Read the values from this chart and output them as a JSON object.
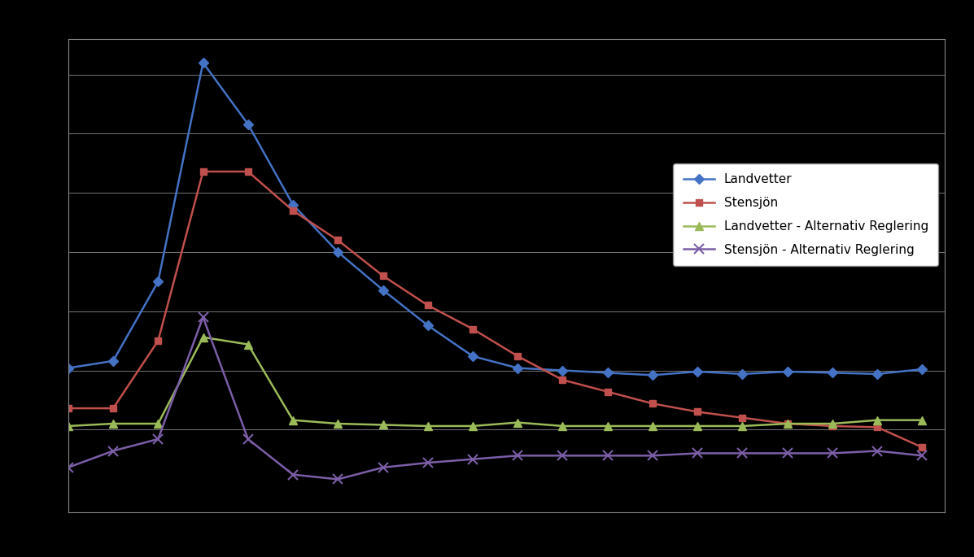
{
  "background_color": "#000000",
  "plot_bg_color": "#000000",
  "grid_color": "#888888",
  "text_color": "#000000",
  "spine_color": "#888888",
  "series": [
    {
      "label": "Landvetter",
      "color": "#4472C4",
      "marker": "D",
      "marker_size": 6,
      "linewidth": 1.8,
      "values": [
        52,
        58,
        125,
        310,
        258,
        190,
        150,
        118,
        88,
        62,
        52,
        50,
        48,
        46,
        49,
        47,
        49,
        48,
        47,
        51
      ]
    },
    {
      "label": "Stensjön",
      "color": "#C0504D",
      "marker": "s",
      "marker_size": 6,
      "linewidth": 1.8,
      "values": [
        18,
        18,
        75,
        218,
        218,
        185,
        160,
        130,
        105,
        85,
        62,
        42,
        32,
        22,
        15,
        10,
        5,
        3,
        2,
        -15
      ]
    },
    {
      "label": "Landvetter - Alternativ Reglering",
      "color": "#9BBB59",
      "marker": "^",
      "marker_size": 7,
      "linewidth": 1.8,
      "values": [
        3,
        5,
        5,
        78,
        72,
        8,
        5,
        4,
        3,
        3,
        6,
        3,
        3,
        3,
        3,
        3,
        5,
        5,
        8,
        8
      ]
    },
    {
      "label": "Stensjön - Alternativ Reglering",
      "color": "#7B5EA7",
      "marker": "x",
      "marker_size": 8,
      "linewidth": 1.8,
      "values": [
        -32,
        -18,
        -8,
        95,
        -8,
        -38,
        -42,
        -32,
        -28,
        -25,
        -22,
        -22,
        -22,
        -22,
        -20,
        -20,
        -20,
        -20,
        -18,
        -22
      ]
    }
  ],
  "ylim": [
    -70,
    330
  ],
  "xlim": [
    0.0,
    19.5
  ],
  "ytick_positions": [
    0,
    50,
    100,
    150,
    200,
    250,
    300
  ],
  "xtick_positions": [
    0,
    2,
    4,
    6,
    8,
    10,
    12,
    14,
    16,
    18
  ],
  "legend_facecolor": "#ffffff",
  "legend_edgecolor": "#888888",
  "legend_fontsize": 11
}
